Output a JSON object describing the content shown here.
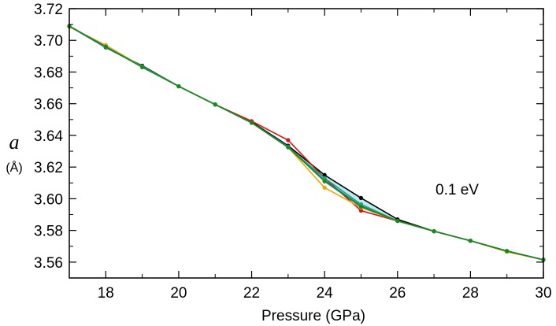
{
  "chart_data": {
    "type": "line",
    "xlabel": "Pressure (GPa)",
    "ylabel_symbol": "a",
    "ylabel_unit": "(Å)",
    "annotation": "0.1 eV",
    "xlim": [
      17,
      30
    ],
    "ylim": [
      3.55,
      3.72
    ],
    "xticks_major": [
      18,
      20,
      22,
      24,
      26,
      28,
      30
    ],
    "xtick_labels": [
      "18",
      "20",
      "22",
      "24",
      "26",
      "28",
      "30"
    ],
    "xticks_minor": [
      17,
      19,
      21,
      23,
      25,
      27,
      29
    ],
    "yticks_major": [
      3.56,
      3.58,
      3.6,
      3.62,
      3.64,
      3.66,
      3.68,
      3.7,
      3.72
    ],
    "ytick_labels": [
      "3.56",
      "3.58",
      "3.60",
      "3.62",
      "3.64",
      "3.66",
      "3.68",
      "3.70",
      "3.72"
    ],
    "grid": false,
    "band": {
      "color": "#bfe8f2",
      "upper_series": 0,
      "lower_series": 3
    },
    "series": [
      {
        "color": "#000000",
        "x": [
          17,
          18,
          19,
          20,
          21,
          22,
          23,
          24,
          25,
          26,
          27,
          28,
          29,
          30
        ],
        "values": [
          3.709,
          3.6955,
          3.684,
          3.671,
          3.6595,
          3.6485,
          3.6335,
          3.615,
          3.6005,
          3.587,
          3.5795,
          3.5735,
          3.567,
          3.5615
        ]
      },
      {
        "color": "#e01010",
        "x": [
          17,
          18,
          19,
          20,
          21,
          22,
          23,
          24,
          25,
          26,
          27,
          28,
          29,
          30
        ],
        "values": [
          3.709,
          3.6955,
          3.6835,
          3.671,
          3.6595,
          3.649,
          3.637,
          3.613,
          3.5925,
          3.586,
          3.5795,
          3.5735,
          3.567,
          3.5615
        ]
      },
      {
        "color": "#f5a20a",
        "x": [
          17,
          18,
          19,
          20,
          21,
          22,
          23,
          24,
          25,
          26,
          27,
          28,
          29,
          30
        ],
        "values": [
          3.7085,
          3.697,
          3.6835,
          3.671,
          3.6595,
          3.648,
          3.6325,
          3.607,
          3.5945,
          3.586,
          3.5795,
          3.5735,
          3.5665,
          3.5615
        ]
      },
      {
        "color": "#1f6fd0",
        "x": [
          17,
          18,
          19,
          20,
          21,
          22,
          23,
          24,
          25,
          26,
          27,
          28,
          29,
          30
        ],
        "values": [
          3.709,
          3.6955,
          3.6835,
          3.671,
          3.6595,
          3.648,
          3.633,
          3.6115,
          3.5955,
          3.586,
          3.5795,
          3.5735,
          3.567,
          3.5615
        ]
      },
      {
        "color": "#1aa87a",
        "x": [
          17,
          18,
          19,
          20,
          21,
          22,
          23,
          24,
          25,
          26,
          27,
          28,
          29,
          30
        ],
        "values": [
          3.709,
          3.696,
          3.6835,
          3.671,
          3.6595,
          3.648,
          3.6325,
          3.613,
          3.5965,
          3.586,
          3.5795,
          3.5735,
          3.567,
          3.5615
        ]
      },
      {
        "color": "#168c16",
        "x": [
          17,
          18,
          19,
          20,
          21,
          22,
          23,
          24,
          25,
          26,
          27,
          28,
          29,
          30
        ],
        "values": [
          3.709,
          3.696,
          3.683,
          3.671,
          3.6595,
          3.648,
          3.6325,
          3.611,
          3.595,
          3.586,
          3.5795,
          3.5735,
          3.567,
          3.5615
        ]
      }
    ]
  }
}
